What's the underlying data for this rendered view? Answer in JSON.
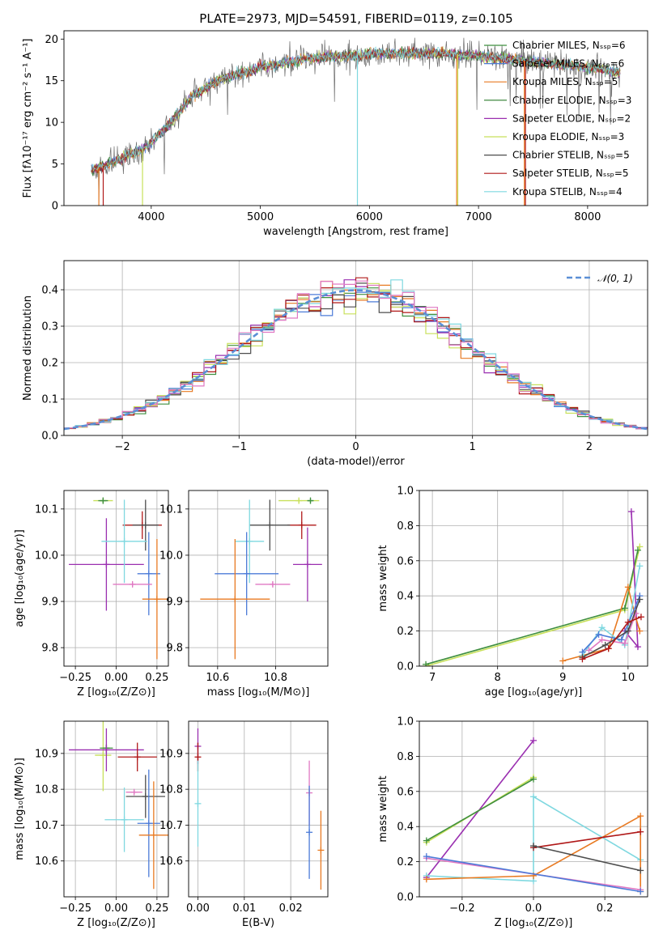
{
  "chart_data": [
    {
      "id": "spectrum",
      "type": "line",
      "title": "PLATE=2973, MJD=54591, FIBERID=0119, z=0.105",
      "xlabel": "wavelength [Angstrom, rest frame]",
      "ylabel": "Flux [fλ10⁻¹⁷ erg cm⁻² s⁻¹ A⁻¹]",
      "xlim": [
        3200,
        8550
      ],
      "ylim": [
        0,
        21
      ],
      "xticks": [
        4000,
        5000,
        6000,
        7000,
        8000
      ],
      "yticks": [
        0,
        5,
        10,
        15,
        20
      ],
      "grid": false,
      "legend_position": "right",
      "continuum": {
        "x": [
          3450,
          3700,
          3950,
          4150,
          4350,
          4600,
          5000,
          5500,
          6000,
          6500,
          7000,
          7500,
          8000,
          8300
        ],
        "y": [
          4.2,
          5.5,
          7.0,
          9.5,
          12.8,
          15.0,
          16.6,
          17.8,
          18.2,
          18.4,
          18.0,
          17.3,
          16.6,
          16.0
        ]
      },
      "series": [
        {
          "name": "Chabrier MILES, Nₛₛₚ=6",
          "color": "#3f8f3f"
        },
        {
          "name": "Salpeter MILES, Nₛₛₚ=6",
          "color": "#4c7bd8"
        },
        {
          "name": "Kroupa MILES, Nₛₛₚ=5",
          "color": "#e87a22"
        },
        {
          "name": "Chabrier ELODIE, Nₛₛₚ=3",
          "color": "#2c7d2c"
        },
        {
          "name": "Salpeter ELODIE, Nₛₛₚ=2",
          "color": "#9a2fb0"
        },
        {
          "name": "Kroupa ELODIE, Nₛₛₚ=3",
          "color": "#c8e05a"
        },
        {
          "name": "Chabrier STELIB, Nₛₛₚ=5",
          "color": "#4d4d4d"
        },
        {
          "name": "Salpeter STELIB, Nₛₛₚ=5",
          "color": "#b01818"
        },
        {
          "name": "Kroupa STELIB, Nₛₛₚ=4",
          "color": "#7fd8e0"
        }
      ]
    },
    {
      "id": "residuals",
      "type": "histogram",
      "xlabel": "(data-model)/error",
      "ylabel": "Normed distribution",
      "xlim": [
        -2.5,
        2.5
      ],
      "ylim": [
        0,
        0.48
      ],
      "xticks": [
        -2,
        -1,
        0,
        1,
        2
      ],
      "yticks": [
        0.0,
        0.1,
        0.2,
        0.3,
        0.4
      ],
      "grid": true,
      "reference_curve": {
        "name": "𝒩(0, 1)",
        "color": "#5b8fd6",
        "style": "dashed"
      },
      "bin_width": 0.1,
      "series_colors": [
        "#3f8f3f",
        "#4c7bd8",
        "#e87a22",
        "#9a2fb0",
        "#c8e05a",
        "#4d4d4d",
        "#b01818",
        "#7fd8e0",
        "#e079c3"
      ]
    },
    {
      "id": "age_vs_Z",
      "type": "errorbar",
      "xlabel": "Z [log₁₀(Z/Z⊙)]",
      "ylabel": "age  [log₁₀(age/yr)]",
      "xlim": [
        -0.32,
        0.32
      ],
      "ylim": [
        9.76,
        10.14
      ],
      "xticks": [
        -0.25,
        0.0,
        0.25
      ],
      "yticks": [
        9.8,
        9.9,
        10.0,
        10.1
      ],
      "grid": true,
      "points": [
        {
          "x": -0.08,
          "y": 10.118,
          "xerr": 0.06,
          "yerr": 0.005,
          "color": "#c8e05a"
        },
        {
          "x": -0.08,
          "y": 10.118,
          "xerr": 0.03,
          "yerr": 0.005,
          "color": "#3f8f3f"
        },
        {
          "x": -0.06,
          "y": 9.98,
          "xerr": 0.23,
          "yerr": 0.1,
          "color": "#9a2fb0"
        },
        {
          "x": 0.16,
          "y": 10.065,
          "xerr": 0.12,
          "yerr": 0.03,
          "color": "#b01818"
        },
        {
          "x": 0.18,
          "y": 10.065,
          "xerr": 0.08,
          "yerr": 0.055,
          "color": "#4d4d4d"
        },
        {
          "x": 0.05,
          "y": 10.03,
          "xerr": 0.14,
          "yerr": 0.09,
          "color": "#7fd8e0"
        },
        {
          "x": 0.2,
          "y": 9.96,
          "xerr": 0.07,
          "yerr": 0.09,
          "color": "#4c7bd8"
        },
        {
          "x": 0.1,
          "y": 9.937,
          "xerr": 0.12,
          "yerr": 0.005,
          "color": "#e079c3"
        },
        {
          "x": 0.25,
          "y": 9.905,
          "xerr": 0.09,
          "yerr": 0.13,
          "color": "#e87a22"
        }
      ]
    },
    {
      "id": "age_vs_mass",
      "type": "errorbar",
      "xlabel": "mass [log₁₀(M/M⊙)]",
      "ylabel": "",
      "xlim": [
        10.5,
        10.98
      ],
      "ylim": [
        9.76,
        10.14
      ],
      "xticks": [
        10.6,
        10.8
      ],
      "yticks": [
        9.8,
        9.9,
        10.0,
        10.1
      ],
      "grid": true,
      "points": [
        {
          "x": 10.88,
          "y": 10.118,
          "xerr": 0.07,
          "yerr": 0.005,
          "color": "#c8e05a"
        },
        {
          "x": 10.92,
          "y": 10.118,
          "xerr": 0.01,
          "yerr": 0.005,
          "color": "#3f8f3f"
        },
        {
          "x": 10.91,
          "y": 9.98,
          "xerr": 0.05,
          "yerr": 0.08,
          "color": "#9a2fb0"
        },
        {
          "x": 10.89,
          "y": 10.065,
          "xerr": 0.05,
          "yerr": 0.03,
          "color": "#b01818"
        },
        {
          "x": 10.78,
          "y": 10.065,
          "xerr": 0.07,
          "yerr": 0.055,
          "color": "#4d4d4d"
        },
        {
          "x": 10.71,
          "y": 10.03,
          "xerr": 0.05,
          "yerr": 0.09,
          "color": "#7fd8e0"
        },
        {
          "x": 10.7,
          "y": 9.96,
          "xerr": 0.11,
          "yerr": 0.09,
          "color": "#4c7bd8"
        },
        {
          "x": 10.79,
          "y": 9.937,
          "xerr": 0.06,
          "yerr": 0.005,
          "color": "#e079c3"
        },
        {
          "x": 10.66,
          "y": 9.905,
          "xerr": 0.12,
          "yerr": 0.13,
          "color": "#e87a22"
        }
      ]
    },
    {
      "id": "massweight_vs_age",
      "type": "line",
      "xlabel": "age  [log₁₀(age/yr)]",
      "ylabel": "mass weight",
      "xlim": [
        6.8,
        10.3
      ],
      "ylim": [
        0,
        1.0
      ],
      "xticks": [
        7,
        8,
        9,
        10
      ],
      "yticks": [
        0.0,
        0.2,
        0.4,
        0.6,
        0.8,
        1.0
      ],
      "grid": true,
      "series": [
        {
          "color": "#c8e05a",
          "x": [
            6.9,
            9.95,
            10.18
          ],
          "y": [
            0.0,
            0.32,
            0.68
          ]
        },
        {
          "color": "#3f8f3f",
          "x": [
            6.9,
            9.95,
            10.15
          ],
          "y": [
            0.01,
            0.33,
            0.66
          ]
        },
        {
          "color": "#9a2fb0",
          "x": [
            9.95,
            10.15,
            10.05
          ],
          "y": [
            0.2,
            0.11,
            0.88
          ]
        },
        {
          "color": "#e87a22",
          "x": [
            9.0,
            9.7,
            10.0,
            10.1,
            10.18
          ],
          "y": [
            0.03,
            0.1,
            0.45,
            0.3,
            0.2
          ]
        },
        {
          "color": "#7fd8e0",
          "x": [
            9.3,
            9.6,
            9.95,
            10.18
          ],
          "y": [
            0.06,
            0.22,
            0.12,
            0.57
          ]
        },
        {
          "color": "#4c7bd8",
          "x": [
            9.3,
            9.55,
            9.9,
            10.18
          ],
          "y": [
            0.08,
            0.18,
            0.15,
            0.4
          ]
        },
        {
          "color": "#e079c3",
          "x": [
            9.4,
            9.6,
            9.95,
            10.12
          ],
          "y": [
            0.09,
            0.15,
            0.13,
            0.3
          ]
        },
        {
          "color": "#4d4d4d",
          "x": [
            9.3,
            9.65,
            10.0,
            10.18
          ],
          "y": [
            0.05,
            0.12,
            0.2,
            0.38
          ]
        },
        {
          "color": "#b01818",
          "x": [
            9.3,
            9.7,
            10.0,
            10.2
          ],
          "y": [
            0.04,
            0.1,
            0.25,
            0.28
          ]
        }
      ]
    },
    {
      "id": "mass_vs_Z",
      "type": "errorbar",
      "xlabel": "Z [log₁₀(Z/Z⊙)]",
      "ylabel": "mass [log₁₀(M/M⊙)]",
      "xlim": [
        -0.32,
        0.32
      ],
      "ylim": [
        10.5,
        10.99
      ],
      "xticks": [
        -0.25,
        0.0,
        0.25
      ],
      "yticks": [
        10.6,
        10.7,
        10.8,
        10.9
      ],
      "grid": true,
      "points": [
        {
          "x": -0.08,
          "y": 10.895,
          "xerr": 0.05,
          "yerr": 0.1,
          "color": "#c8e05a"
        },
        {
          "x": -0.06,
          "y": 10.915,
          "xerr": 0.04,
          "yerr": 0.01,
          "color": "#3f8f3f"
        },
        {
          "x": -0.06,
          "y": 10.91,
          "xerr": 0.23,
          "yerr": 0.06,
          "color": "#9a2fb0"
        },
        {
          "x": 0.13,
          "y": 10.89,
          "xerr": 0.12,
          "yerr": 0.04,
          "color": "#b01818"
        },
        {
          "x": 0.18,
          "y": 10.78,
          "xerr": 0.12,
          "yerr": 0.06,
          "color": "#4d4d4d"
        },
        {
          "x": 0.05,
          "y": 10.715,
          "xerr": 0.12,
          "yerr": 0.09,
          "color": "#7fd8e0"
        },
        {
          "x": 0.2,
          "y": 10.705,
          "xerr": 0.07,
          "yerr": 0.15,
          "color": "#4c7bd8"
        },
        {
          "x": 0.11,
          "y": 10.792,
          "xerr": 0.05,
          "yerr": 0.005,
          "color": "#e079c3"
        },
        {
          "x": 0.23,
          "y": 10.672,
          "xerr": 0.09,
          "yerr": 0.15,
          "color": "#e87a22"
        }
      ]
    },
    {
      "id": "mass_vs_ebv",
      "type": "errorbar",
      "xlabel": "E(B-V)",
      "ylabel": "",
      "xlim": [
        -0.002,
        0.028
      ],
      "ylim": [
        10.5,
        10.99
      ],
      "xticks": [
        0.0,
        0.01,
        0.02
      ],
      "yticks": [
        10.6,
        10.7,
        10.8,
        10.9
      ],
      "grid": true,
      "points": [
        {
          "x": 0.0,
          "y": 10.92,
          "xerr": 0.0,
          "yerr": 0.05,
          "color": "#9a2fb0"
        },
        {
          "x": 0.0,
          "y": 10.89,
          "xerr": 0.0,
          "yerr": 0.04,
          "color": "#b01818"
        },
        {
          "x": 0.0,
          "y": 10.76,
          "xerr": 0.0,
          "yerr": 0.12,
          "color": "#7fd8e0"
        },
        {
          "x": 0.024,
          "y": 10.79,
          "xerr": 0.0,
          "yerr": 0.09,
          "color": "#e079c3"
        },
        {
          "x": 0.024,
          "y": 10.68,
          "xerr": 0.0,
          "yerr": 0.13,
          "color": "#4c7bd8"
        },
        {
          "x": 0.0265,
          "y": 10.63,
          "xerr": 0.0,
          "yerr": 0.11,
          "color": "#e87a22"
        }
      ]
    },
    {
      "id": "massweight_vs_Z",
      "type": "line",
      "xlabel": "Z [log₁₀(Z/Z⊙)]",
      "ylabel": "mass weight",
      "xlim": [
        -0.32,
        0.32
      ],
      "ylim": [
        0,
        1.0
      ],
      "xticks": [
        -0.2,
        0.0,
        0.2
      ],
      "yticks": [
        0.0,
        0.2,
        0.4,
        0.6,
        0.8,
        1.0
      ],
      "grid": true,
      "series": [
        {
          "color": "#9a2fb0",
          "x": [
            -0.3,
            0.0
          ],
          "y": [
            0.11,
            0.89
          ]
        },
        {
          "color": "#c8e05a",
          "x": [
            -0.3,
            0.0
          ],
          "y": [
            0.31,
            0.68
          ]
        },
        {
          "color": "#3f8f3f",
          "x": [
            -0.3,
            0.0
          ],
          "y": [
            0.32,
            0.67
          ]
        },
        {
          "color": "#7fd8e0",
          "x": [
            -0.3,
            0.0,
            0.0,
            0.3
          ],
          "y": [
            0.12,
            0.09,
            0.57,
            0.21
          ]
        },
        {
          "color": "#e87a22",
          "x": [
            -0.3,
            0.0,
            0.3,
            0.3
          ],
          "y": [
            0.1,
            0.12,
            0.46,
            0.03
          ]
        },
        {
          "color": "#b01818",
          "x": [
            0.0,
            0.3
          ],
          "y": [
            0.28,
            0.37
          ]
        },
        {
          "color": "#4d4d4d",
          "x": [
            0.0,
            0.3
          ],
          "y": [
            0.29,
            0.15
          ]
        },
        {
          "color": "#e079c3",
          "x": [
            -0.3,
            0.3
          ],
          "y": [
            0.22,
            0.04
          ]
        },
        {
          "color": "#4c7bd8",
          "x": [
            -0.3,
            0.3
          ],
          "y": [
            0.23,
            0.03
          ]
        }
      ]
    }
  ]
}
